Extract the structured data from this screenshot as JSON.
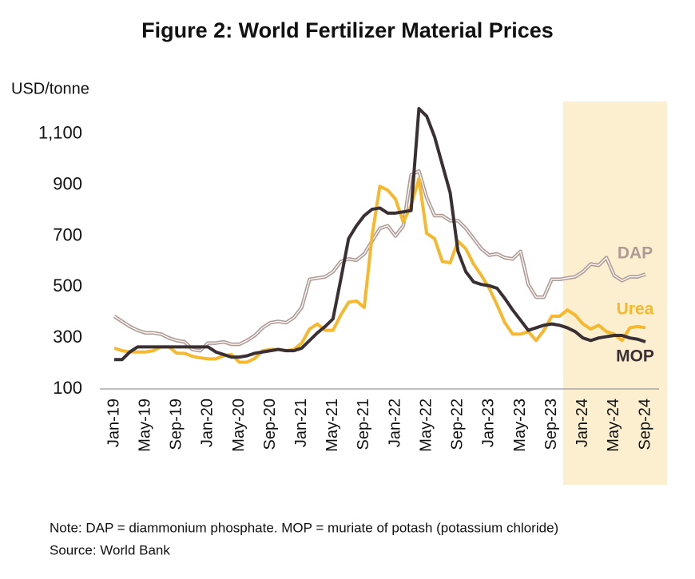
{
  "chart_data": {
    "type": "line",
    "title": "Figure 2: World Fertilizer Material Prices",
    "y_label": "USD/tonne",
    "categories": [
      "Jan-19",
      null,
      null,
      null,
      "May-19",
      null,
      null,
      null,
      "Sep-19",
      null,
      null,
      null,
      "Jan-20",
      null,
      null,
      null,
      "May-20",
      null,
      null,
      null,
      "Sep-20",
      null,
      null,
      null,
      "Jan-21",
      null,
      null,
      null,
      "May-21",
      null,
      null,
      null,
      "Sep-21",
      null,
      null,
      null,
      "Jan-22",
      null,
      null,
      null,
      "May-22",
      null,
      null,
      null,
      "Sep-22",
      null,
      null,
      null,
      "Jan-23",
      null,
      null,
      null,
      "May-23",
      null,
      null,
      null,
      "Sep-23",
      null,
      null,
      null,
      "Jan-24",
      null,
      null,
      null,
      "May-24",
      null,
      null,
      null,
      "Sep-24"
    ],
    "series": [
      {
        "name": "DAP",
        "color": "#b09a95",
        "values": [
          385,
          365,
          345,
          330,
          320,
          320,
          315,
          300,
          290,
          285,
          255,
          250,
          280,
          280,
          285,
          275,
          275,
          290,
          310,
          340,
          360,
          365,
          360,
          380,
          420,
          530,
          535,
          540,
          560,
          600,
          610,
          605,
          630,
          680,
          730,
          740,
          700,
          740,
          940,
          955,
          850,
          780,
          780,
          760,
          760,
          730,
          690,
          650,
          625,
          630,
          615,
          610,
          640,
          510,
          460,
          460,
          530,
          530,
          535,
          540,
          560,
          590,
          585,
          615,
          545,
          525,
          540,
          540,
          550
        ]
      },
      {
        "name": "Urea",
        "color": "#f5b82e",
        "values": [
          260,
          250,
          245,
          245,
          245,
          250,
          265,
          265,
          240,
          240,
          228,
          222,
          218,
          218,
          230,
          235,
          205,
          205,
          220,
          250,
          255,
          255,
          250,
          255,
          280,
          335,
          355,
          330,
          330,
          390,
          440,
          445,
          420,
          700,
          895,
          880,
          845,
          755,
          820,
          925,
          710,
          690,
          600,
          595,
          680,
          650,
          590,
          545,
          495,
          430,
          360,
          315,
          315,
          325,
          290,
          330,
          385,
          385,
          410,
          390,
          355,
          335,
          350,
          325,
          315,
          290,
          340,
          345,
          340
        ]
      },
      {
        "name": "MOP",
        "color": "#3a3033",
        "values": [
          215,
          215,
          245,
          265,
          265,
          265,
          265,
          265,
          265,
          265,
          265,
          265,
          265,
          245,
          235,
          225,
          225,
          230,
          240,
          245,
          250,
          255,
          250,
          250,
          260,
          290,
          320,
          345,
          375,
          530,
          690,
          740,
          780,
          805,
          810,
          790,
          790,
          795,
          800,
          1200,
          1170,
          1090,
          980,
          870,
          640,
          560,
          520,
          510,
          505,
          495,
          455,
          410,
          370,
          330,
          340,
          350,
          355,
          350,
          340,
          325,
          300,
          290,
          300,
          305,
          310,
          310,
          300,
          295,
          285
        ]
      }
    ],
    "ylim": [
      100,
      1200
    ],
    "yticks": [
      100,
      300,
      500,
      700,
      900,
      {
        "value": 1100,
        "label": "1,100"
      }
    ],
    "note": "Note: DAP = diammonium phosphate. MOP = muriate of potash (potassium chloride)",
    "source": "Source: World Bank"
  }
}
